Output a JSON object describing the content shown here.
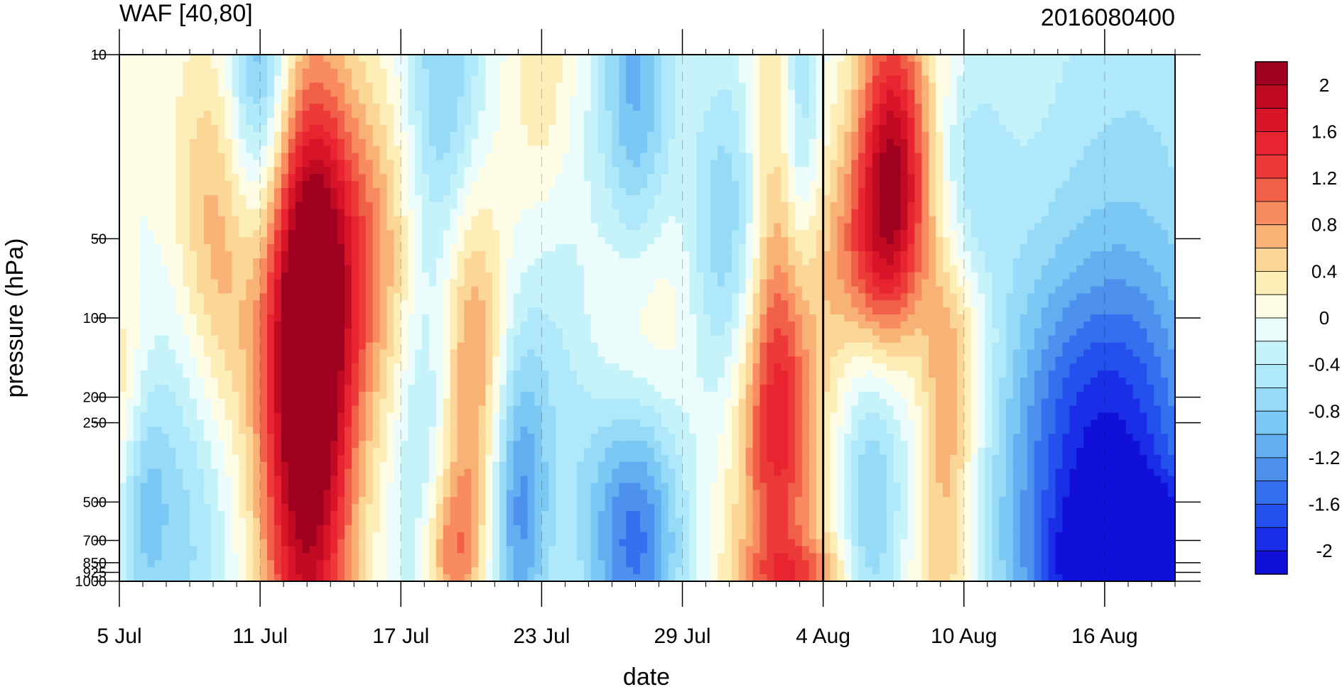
{
  "chart_data": {
    "type": "heatmap",
    "title_left": "WAF [40,80]",
    "title_right": "2016080400",
    "xlabel": "date",
    "ylabel": "pressure (hPa)",
    "x_ticks": [
      "5 Jul",
      "11 Jul",
      "17 Jul",
      "23 Jul",
      "29 Jul",
      "4 Aug",
      "10 Aug",
      "16 Aug"
    ],
    "x_range": [
      "2016-07-05",
      "2016-08-19"
    ],
    "y_scale": "log",
    "y_reversed": true,
    "y_range": [
      1000,
      10
    ],
    "y_ticks": [
      "10",
      "50",
      "100",
      "200",
      "250",
      "500",
      "700",
      "850",
      "925",
      "1000"
    ],
    "y_tick_values": [
      10,
      50,
      100,
      200,
      250,
      500,
      700,
      850,
      925,
      1000
    ],
    "vertical_line_date": "4 Aug",
    "colorbar": {
      "levels": [
        -2.2,
        -2.0,
        -1.8,
        -1.6,
        -1.4,
        -1.2,
        -1.0,
        -0.8,
        -0.6,
        -0.4,
        -0.2,
        0.0,
        0.2,
        0.4,
        0.6,
        0.8,
        1.0,
        1.2,
        1.4,
        1.6,
        1.8,
        2.0,
        2.2
      ],
      "labels": [
        "2",
        "1.6",
        "1.2",
        "0.8",
        "0.4",
        "0",
        "-0.4",
        "-0.8",
        "-1.2",
        "-1.6",
        "-2"
      ],
      "label_values": [
        2,
        1.6,
        1.2,
        0.8,
        0.4,
        0,
        -0.4,
        -0.8,
        -1.2,
        -1.6,
        -2
      ],
      "colors": [
        "#1010d8",
        "#1a2ee8",
        "#2450ee",
        "#3470ee",
        "#4e90ee",
        "#62aef0",
        "#7cc8f4",
        "#96daf8",
        "#aee8fa",
        "#c6f2fa",
        "#eafcfc",
        "#fffce6",
        "#fdedb6",
        "#fbd696",
        "#f8b276",
        "#f88c60",
        "#f06048",
        "#ec3a38",
        "#e82430",
        "#d81428",
        "#c00a22",
        "#a00020"
      ]
    },
    "features": [
      {
        "date": "2016-08-07",
        "p": 25,
        "value": 1.85,
        "sx": 1.1,
        "sp": 0.42
      },
      {
        "date": "2016-08-06",
        "p": 60,
        "value": 0.9,
        "sx": 1.6,
        "sp": 0.3
      },
      {
        "date": "2016-07-13",
        "p": 350,
        "value": 1.6,
        "sx": 1.4,
        "sp": 1.0
      },
      {
        "date": "2016-07-13",
        "p": 120,
        "value": 1.1,
        "sx": 1.2,
        "sp": 0.6
      },
      {
        "date": "2016-07-15",
        "p": 60,
        "value": 0.9,
        "sx": 2.5,
        "sp": 0.45
      },
      {
        "date": "2016-07-09",
        "p": 55,
        "value": 0.95,
        "sx": 1.4,
        "sp": 0.55
      },
      {
        "date": "2016-07-20",
        "p": 150,
        "value": 0.95,
        "sx": 1.0,
        "sp": 0.55
      },
      {
        "date": "2016-07-19",
        "p": 820,
        "value": 1.0,
        "sx": 0.9,
        "sp": 0.25
      },
      {
        "date": "2016-08-02",
        "p": 220,
        "value": 1.2,
        "sx": 1.1,
        "sp": 0.45
      },
      {
        "date": "2016-08-09",
        "p": 400,
        "value": 0.9,
        "sx": 1.0,
        "sp": 0.75
      },
      {
        "date": "2016-08-10",
        "p": 100,
        "value": 0.9,
        "sx": 1.2,
        "sp": 0.35
      },
      {
        "date": "2016-07-27",
        "p": 100,
        "value": 0.6,
        "sx": 1.6,
        "sp": 0.4
      },
      {
        "date": "2016-08-02",
        "p": 18,
        "value": 0.6,
        "sx": 0.9,
        "sp": 0.6
      },
      {
        "date": "2016-07-23",
        "p": 12,
        "value": 0.4,
        "sx": 0.9,
        "sp": 0.4
      },
      {
        "date": "2016-08-03",
        "p": 950,
        "value": 0.7,
        "sx": 1.5,
        "sp": 0.1
      },
      {
        "date": "2016-07-05",
        "p": 200,
        "value": 0.45,
        "sx": 0.9,
        "sp": 0.3
      },
      {
        "date": "2016-08-02",
        "p": 700,
        "value": 0.4,
        "sx": 2.0,
        "sp": 0.7
      },
      {
        "date": "2016-07-11",
        "p": 12,
        "value": -1.25,
        "sx": 1.0,
        "sp": 0.55
      },
      {
        "date": "2016-07-19",
        "p": 14,
        "value": -0.9,
        "sx": 1.2,
        "sp": 0.6
      },
      {
        "date": "2016-07-27",
        "p": 14,
        "value": -1.1,
        "sx": 1.1,
        "sp": 0.6
      },
      {
        "date": "2016-08-03",
        "p": 15,
        "value": -0.8,
        "sx": 0.6,
        "sp": 0.5
      },
      {
        "date": "2016-07-27",
        "p": 680,
        "value": -1.5,
        "sx": 1.5,
        "sp": 0.4
      },
      {
        "date": "2016-07-22",
        "p": 550,
        "value": -1.2,
        "sx": 0.9,
        "sp": 0.45
      },
      {
        "date": "2016-07-08",
        "p": 400,
        "value": -0.75,
        "sx": 1.4,
        "sp": 0.8
      },
      {
        "date": "2016-07-06",
        "p": 500,
        "value": -0.7,
        "sx": 0.8,
        "sp": 0.35
      },
      {
        "date": "2016-07-18",
        "p": 380,
        "value": -0.65,
        "sx": 1.0,
        "sp": 0.8
      },
      {
        "date": "2016-07-31",
        "p": 50,
        "value": -0.9,
        "sx": 1.3,
        "sp": 0.5
      },
      {
        "date": "2016-08-10",
        "p": 50,
        "value": -1.0,
        "sx": 1.3,
        "sp": 0.4
      },
      {
        "date": "2016-08-06",
        "p": 500,
        "value": -0.85,
        "sx": 0.9,
        "sp": 0.5
      },
      {
        "date": "2016-08-16",
        "p": 800,
        "value": -1.3,
        "sx": 3.5,
        "sp": 0.7
      },
      {
        "date": "2016-08-18",
        "p": 950,
        "value": -2.0,
        "sx": 2.5,
        "sp": 0.2
      },
      {
        "date": "2016-08-16",
        "p": 250,
        "value": -0.85,
        "sx": 3.0,
        "sp": 0.45
      },
      {
        "date": "2016-08-16",
        "p": 50,
        "value": 0.05,
        "sx": 1.3,
        "sp": 0.5
      },
      {
        "date": "2016-08-17",
        "p": 20,
        "value": -0.55,
        "sx": 3.5,
        "sp": 0.8
      },
      {
        "date": "2016-07-24",
        "p": 150,
        "value": -0.45,
        "sx": 1.5,
        "sp": 0.6
      },
      {
        "date": "2016-08-08",
        "p": 200,
        "value": -0.45,
        "sx": 0.8,
        "sp": 0.5
      }
    ]
  }
}
